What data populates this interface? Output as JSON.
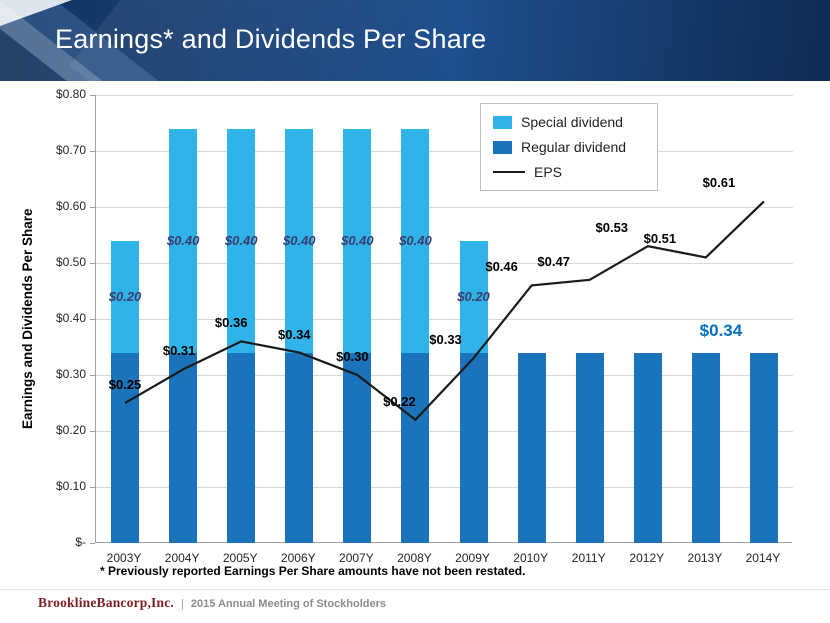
{
  "slide": {
    "title": "Earnings* and Dividends Per Share",
    "footnote": "* Previously reported Earnings Per Share amounts have not been restated.",
    "footer": {
      "brand": "BrooklineBancorp,Inc.",
      "separator": "|",
      "text": "2015 Annual Meeting of Stockholders"
    }
  },
  "chart_data": {
    "type": "combo",
    "subtype": "stacked-bar + line",
    "title": "",
    "xlabel": "",
    "ylabel": "Earnings and Dividends Per Share",
    "ylim": [
      0,
      0.8
    ],
    "ytick_step": 0.1,
    "ytick_labels": [
      "$-",
      "$0.10",
      "$0.20",
      "$0.30",
      "$0.40",
      "$0.50",
      "$0.60",
      "$0.70",
      "$0.80"
    ],
    "grid": true,
    "legend_position": "top-right",
    "categories": [
      "2003Y",
      "2004Y",
      "2005Y",
      "2006Y",
      "2007Y",
      "2008Y",
      "2009Y",
      "2010Y",
      "2011Y",
      "2012Y",
      "2013Y",
      "2014Y"
    ],
    "series": [
      {
        "name": "Regular dividend",
        "type": "bar",
        "stack": "dividend",
        "values": [
          0.34,
          0.34,
          0.34,
          0.34,
          0.34,
          0.34,
          0.34,
          0.34,
          0.34,
          0.34,
          0.34,
          0.34
        ]
      },
      {
        "name": "Special dividend",
        "type": "bar",
        "stack": "dividend",
        "values": [
          0.2,
          0.4,
          0.4,
          0.4,
          0.4,
          0.4,
          0.2,
          0,
          0,
          0,
          0,
          0
        ],
        "labels": [
          "$0.20",
          "$0.40",
          "$0.40",
          "$0.40",
          "$0.40",
          "$0.40",
          "$0.20",
          null,
          null,
          null,
          null,
          null
        ]
      },
      {
        "name": "EPS",
        "type": "line",
        "values": [
          0.25,
          0.31,
          0.36,
          0.34,
          0.3,
          0.22,
          0.33,
          0.46,
          0.47,
          0.53,
          0.51,
          0.61
        ],
        "labels": [
          "$0.25",
          "$0.31",
          "$0.36",
          "$0.34",
          "$0.30",
          "$0.22",
          "$0.33",
          "$0.46",
          "$0.47",
          "$0.53",
          "$0.51",
          "$0.61"
        ]
      }
    ],
    "callout": {
      "text": "$0.34",
      "color": "#0070C0"
    },
    "colors": {
      "special": "#2FB3E8",
      "regular": "#1B74BB",
      "eps": "#1A1A1A",
      "special_label": "#3B3B6D",
      "grid": "#D9D9D9",
      "axis": "#A0A0A0"
    }
  }
}
